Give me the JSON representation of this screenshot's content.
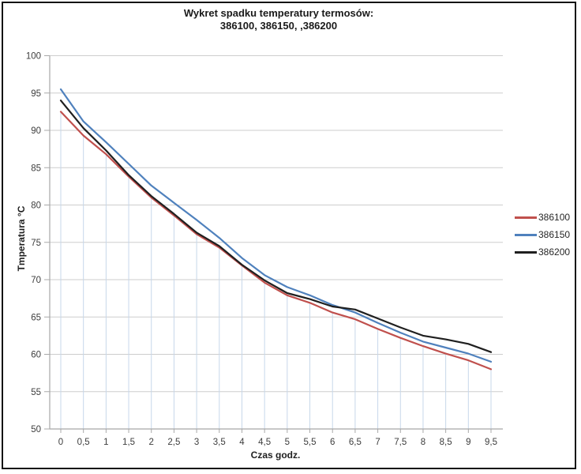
{
  "title": {
    "line1": "Wykret spadku temperatury termosów:",
    "line2": "386100, 386150, ,386200"
  },
  "chart_data": {
    "type": "line",
    "title": "Wykret spadku temperatury termosów: 386100, 386150, ,386200",
    "xlabel": "Czas godz.",
    "ylabel": "Tmperatura °C",
    "x": [
      0,
      0.5,
      1,
      1.5,
      2,
      2.5,
      3,
      3.5,
      4,
      4.5,
      5,
      5.5,
      6,
      6.5,
      7,
      7.5,
      8,
      8.5,
      9,
      9.5
    ],
    "x_tick_labels": [
      "0",
      "0,5",
      "1",
      "1,5",
      "2",
      "2,5",
      "3",
      "3,5",
      "4",
      "4,5",
      "5",
      "5,5",
      "6",
      "6,5",
      "7",
      "7,5",
      "8",
      "8,5",
      "9",
      "9,5"
    ],
    "ylim": [
      50,
      100
    ],
    "yticks": [
      50,
      55,
      60,
      65,
      70,
      75,
      80,
      85,
      90,
      95,
      100
    ],
    "grid": "horizontal",
    "drop_lines": true,
    "legend_position": "right",
    "series": [
      {
        "name": "386100",
        "color": "#C0504D",
        "values": [
          92.5,
          89.3,
          86.8,
          83.8,
          81.0,
          78.6,
          76.1,
          74.3,
          71.9,
          69.6,
          67.9,
          66.9,
          65.6,
          64.7,
          63.4,
          62.2,
          61.1,
          60.1,
          59.2,
          58.0
        ]
      },
      {
        "name": "386150",
        "color": "#4F81BD",
        "values": [
          95.5,
          91.2,
          88.4,
          85.5,
          82.6,
          80.3,
          78.0,
          75.6,
          72.9,
          70.6,
          69.0,
          67.9,
          66.6,
          65.6,
          64.2,
          62.9,
          61.7,
          60.9,
          60.1,
          59.0
        ]
      },
      {
        "name": "386200",
        "color": "#1F1F1F",
        "values": [
          94.0,
          90.3,
          87.3,
          84.0,
          81.2,
          78.8,
          76.3,
          74.5,
          72.0,
          69.9,
          68.2,
          67.4,
          66.4,
          66.0,
          64.8,
          63.6,
          62.5,
          62.0,
          61.4,
          60.3
        ]
      }
    ]
  },
  "colors": {
    "gridline": "#CDCDCD",
    "axis": "#A8A8A8",
    "drop_line": "#C7D7EA",
    "tick_text": "#3D3D3D",
    "frame_border": "#141414"
  }
}
